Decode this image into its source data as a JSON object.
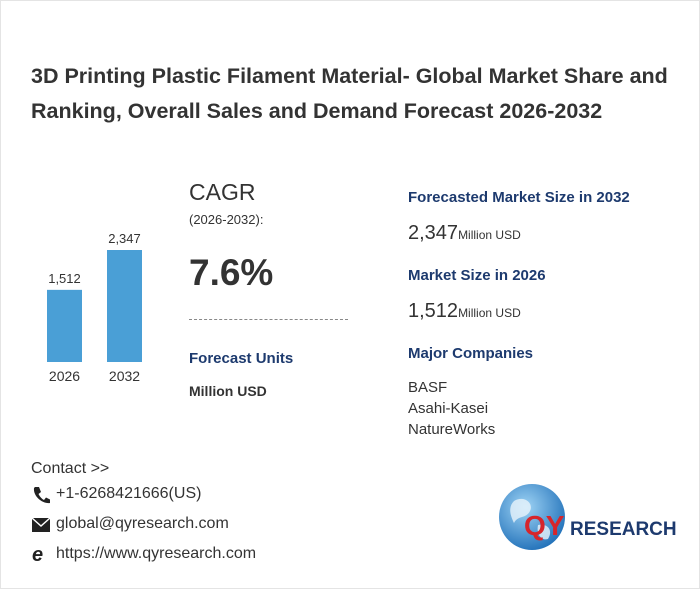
{
  "header": {
    "title": "3D Printing Plastic Filament Material- Global Market Share and Ranking, Overall Sales and Demand Forecast 2026-2032"
  },
  "chart_data": {
    "type": "bar",
    "categories": [
      "2026",
      "2032"
    ],
    "values": [
      1512,
      2347
    ],
    "value_labels": [
      "1,512",
      "2,347"
    ],
    "color": "#4a9fd6"
  },
  "cagr": {
    "label": "CAGR",
    "period": "(2026-2032):",
    "value": "7.6%"
  },
  "forecast_units": {
    "label": "Forecast Units",
    "value": "Million USD"
  },
  "market_2032": {
    "label": "Forecasted Market Size in 2032",
    "value": "2,347",
    "unit": "Million USD"
  },
  "market_2026": {
    "label": "Market Size in 2026",
    "value": "1,512",
    "unit": "Million USD"
  },
  "companies": {
    "label": "Major Companies",
    "items": [
      "BASF",
      "Asahi-Kasei",
      "NatureWorks"
    ]
  },
  "contact": {
    "label": "Contact >>",
    "phone": "+1-6268421666(US)",
    "email": "global@qyresearch.com",
    "website": "https://www.qyresearch.com"
  },
  "logo": {
    "prefix": "QY",
    "suffix": "RESEARCH"
  }
}
